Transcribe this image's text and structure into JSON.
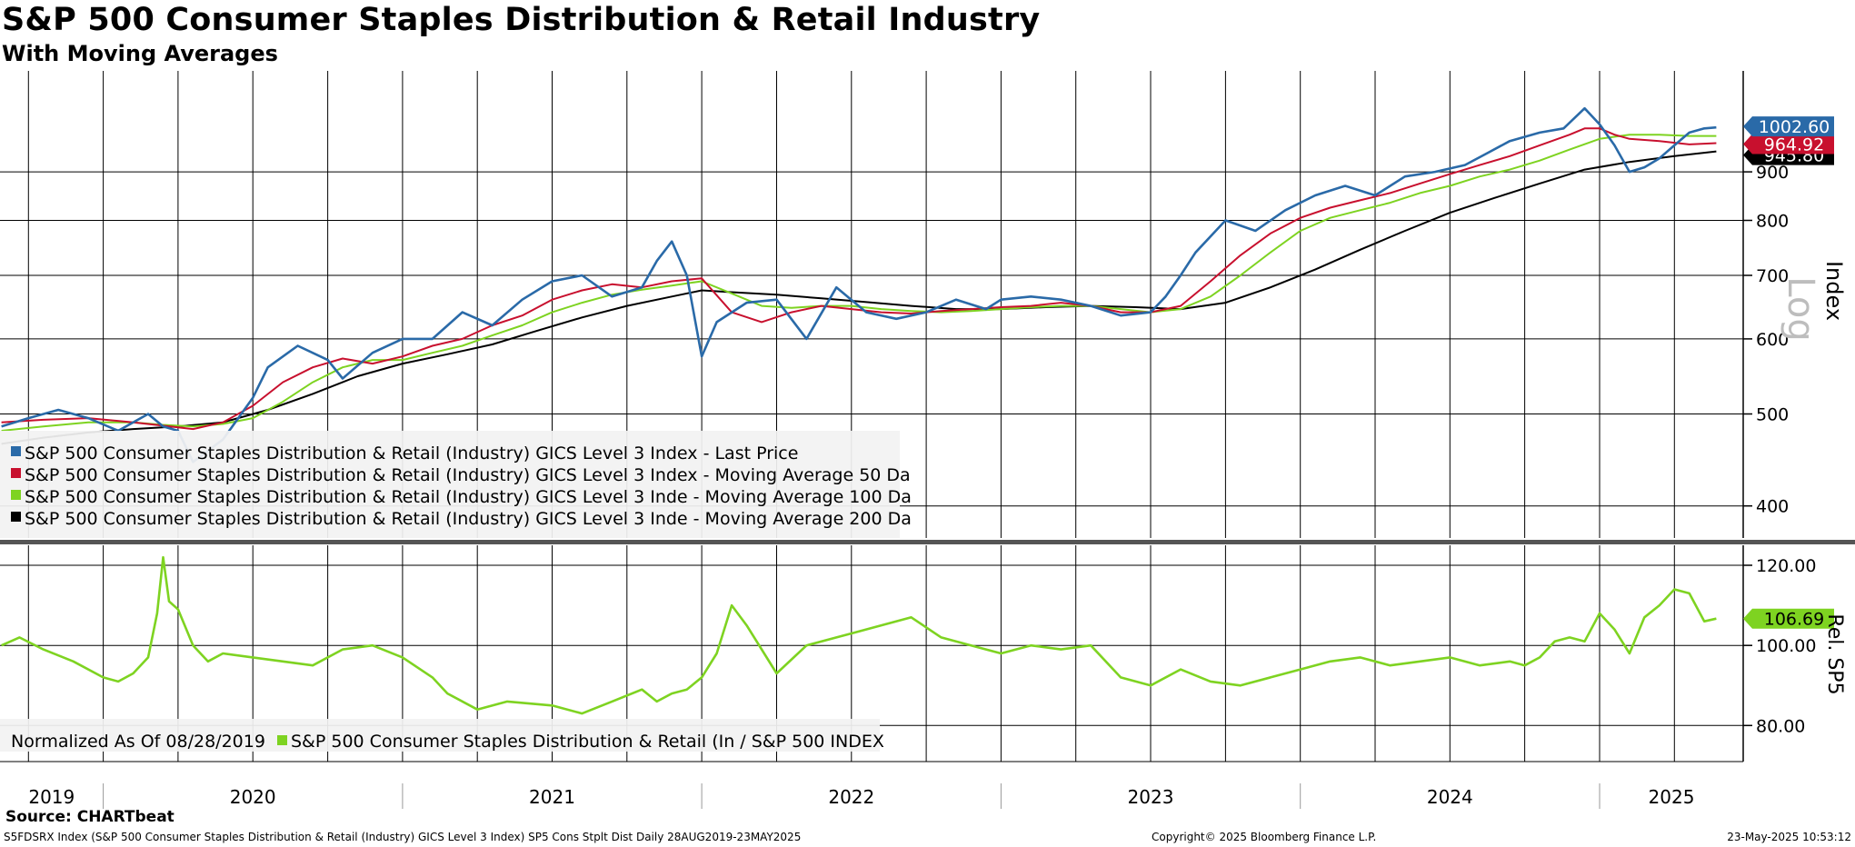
{
  "title": "S&P 500 Consumer Staples Distribution & Retail Industry",
  "subtitle": "With Moving Averages",
  "source": "Source: CHARTbeat",
  "footer": {
    "left": "S5FDSRX Index (S&P 500 Consumer Staples Distribution & Retail (Industry) GICS Level 3 Index) SP5 Cons Stplt Dist  Daily 28AUG2019-23MAY2025",
    "center": "Copyright© 2025 Bloomberg Finance L.P.",
    "right": "23-May-2025 10:53:12"
  },
  "colors": {
    "price": "#2a6aa8",
    "ma50": "#c8102e",
    "ma100": "#7ed321",
    "ma200": "#000000",
    "rel": "#7ed321"
  },
  "chart_data": [
    {
      "type": "line",
      "scale": "log",
      "ylabel": "Index",
      "scale_label": "Log",
      "ylim": [
        370,
        1150
      ],
      "yticks": [
        400,
        500,
        600,
        700,
        800,
        900
      ],
      "xlim": [
        2019.655,
        2025.48
      ],
      "years": [
        "2019",
        "2020",
        "2021",
        "2022",
        "2023",
        "2024",
        "2025"
      ],
      "last_values": {
        "price": "1002.60",
        "ma50": "964.92",
        "ma200": "945.80"
      },
      "legend": [
        "S&P 500 Consumer Staples Distribution & Retail (Industry) GICS Level 3 Index - Last Price",
        "S&P 500 Consumer Staples Distribution & Retail (Industry) GICS Level 3 Index - Moving Average 50 Da",
        "S&P 500 Consumer Staples Distribution & Retail (Industry) GICS Level 3 Inde - Moving Average 100 Da",
        "S&P 500 Consumer Staples Distribution & Retail (Industry) GICS Level 3 Inde - Moving Average 200 Da"
      ],
      "series": [
        {
          "name": "Last Price",
          "key": "price",
          "x": [
            2019.66,
            2019.75,
            2019.85,
            2019.95,
            2020.05,
            2020.15,
            2020.2,
            2020.25,
            2020.3,
            2020.4,
            2020.5,
            2020.55,
            2020.65,
            2020.75,
            2020.8,
            2020.9,
            2021.0,
            2021.1,
            2021.2,
            2021.3,
            2021.4,
            2021.5,
            2021.6,
            2021.7,
            2021.8,
            2021.85,
            2021.9,
            2021.95,
            2022.0,
            2022.05,
            2022.15,
            2022.25,
            2022.35,
            2022.45,
            2022.55,
            2022.65,
            2022.75,
            2022.85,
            2022.95,
            2023.0,
            2023.1,
            2023.2,
            2023.3,
            2023.4,
            2023.5,
            2023.55,
            2023.6,
            2023.65,
            2023.75,
            2023.85,
            2023.95,
            2024.05,
            2024.15,
            2024.25,
            2024.35,
            2024.45,
            2024.55,
            2024.62,
            2024.7,
            2024.8,
            2024.88,
            2024.95,
            2025.0,
            2025.05,
            2025.1,
            2025.15,
            2025.2,
            2025.25,
            2025.3,
            2025.35,
            2025.39
          ],
          "y": [
            485,
            495,
            505,
            495,
            480,
            500,
            485,
            480,
            445,
            470,
            520,
            560,
            590,
            570,
            545,
            580,
            600,
            600,
            640,
            620,
            660,
            690,
            700,
            665,
            680,
            725,
            760,
            700,
            575,
            625,
            655,
            660,
            600,
            680,
            640,
            630,
            640,
            660,
            645,
            660,
            665,
            660,
            650,
            635,
            640,
            665,
            700,
            740,
            800,
            780,
            820,
            850,
            870,
            850,
            890,
            900,
            915,
            940,
            970,
            990,
            1000,
            1050,
            1010,
            960,
            900,
            910,
            930,
            960,
            990,
            1000,
            1002.6
          ]
        },
        {
          "name": "Moving Average 50 Da",
          "key": "ma50",
          "x": [
            2019.66,
            2019.8,
            2019.95,
            2020.1,
            2020.2,
            2020.3,
            2020.4,
            2020.5,
            2020.6,
            2020.7,
            2020.8,
            2020.9,
            2021.0,
            2021.1,
            2021.2,
            2021.3,
            2021.4,
            2021.5,
            2021.6,
            2021.7,
            2021.8,
            2021.9,
            2022.0,
            2022.1,
            2022.2,
            2022.3,
            2022.4,
            2022.5,
            2022.6,
            2022.7,
            2022.8,
            2022.9,
            2023.0,
            2023.1,
            2023.2,
            2023.3,
            2023.4,
            2023.5,
            2023.6,
            2023.7,
            2023.8,
            2023.9,
            2024.0,
            2024.1,
            2024.2,
            2024.3,
            2024.4,
            2024.5,
            2024.6,
            2024.7,
            2024.8,
            2024.9,
            2024.95,
            2025.0,
            2025.05,
            2025.1,
            2025.2,
            2025.3,
            2025.39
          ],
          "y": [
            490,
            493,
            495,
            490,
            486,
            482,
            490,
            510,
            540,
            560,
            572,
            565,
            575,
            590,
            600,
            620,
            635,
            660,
            675,
            685,
            680,
            690,
            695,
            640,
            625,
            640,
            650,
            645,
            640,
            638,
            642,
            645,
            648,
            650,
            655,
            650,
            640,
            640,
            650,
            690,
            735,
            775,
            805,
            825,
            840,
            855,
            875,
            895,
            915,
            935,
            960,
            985,
            1000,
            1000,
            985,
            975,
            970,
            962,
            964.92
          ]
        },
        {
          "name": "Moving Average 100 Da",
          "key": "ma100",
          "x": [
            2019.66,
            2019.8,
            2019.95,
            2020.1,
            2020.2,
            2020.3,
            2020.4,
            2020.5,
            2020.6,
            2020.7,
            2020.8,
            2020.9,
            2021.0,
            2021.1,
            2021.2,
            2021.3,
            2021.4,
            2021.5,
            2021.6,
            2021.7,
            2021.8,
            2021.9,
            2022.0,
            2022.1,
            2022.2,
            2022.3,
            2022.4,
            2022.5,
            2022.6,
            2022.7,
            2022.8,
            2022.9,
            2023.0,
            2023.1,
            2023.2,
            2023.3,
            2023.4,
            2023.5,
            2023.6,
            2023.7,
            2023.8,
            2023.9,
            2024.0,
            2024.1,
            2024.2,
            2024.3,
            2024.4,
            2024.5,
            2024.6,
            2024.7,
            2024.8,
            2024.9,
            2025.0,
            2025.1,
            2025.2,
            2025.3,
            2025.39
          ],
          "y": [
            480,
            485,
            490,
            490,
            487,
            485,
            488,
            495,
            515,
            540,
            560,
            570,
            570,
            580,
            590,
            605,
            620,
            640,
            655,
            668,
            676,
            683,
            690,
            670,
            650,
            647,
            650,
            650,
            645,
            642,
            640,
            642,
            645,
            648,
            650,
            650,
            645,
            640,
            645,
            665,
            700,
            740,
            780,
            805,
            820,
            835,
            855,
            870,
            890,
            905,
            925,
            950,
            975,
            985,
            985,
            982,
            982
          ]
        },
        {
          "name": "Moving Average 200 Da",
          "key": "ma200",
          "x": [
            2019.66,
            2019.8,
            2019.95,
            2020.1,
            2020.25,
            2020.4,
            2020.55,
            2020.7,
            2020.85,
            2021.0,
            2021.15,
            2021.3,
            2021.45,
            2021.6,
            2021.75,
            2021.9,
            2022.0,
            2022.1,
            2022.25,
            2022.4,
            2022.55,
            2022.7,
            2022.85,
            2023.0,
            2023.15,
            2023.3,
            2023.45,
            2023.6,
            2023.75,
            2023.9,
            2024.05,
            2024.2,
            2024.35,
            2024.5,
            2024.65,
            2024.8,
            2024.95,
            2025.1,
            2025.25,
            2025.39
          ],
          "y": [
            465,
            472,
            478,
            482,
            485,
            490,
            505,
            525,
            548,
            565,
            578,
            592,
            612,
            632,
            650,
            665,
            675,
            672,
            668,
            662,
            656,
            650,
            645,
            645,
            648,
            650,
            648,
            645,
            655,
            680,
            710,
            745,
            780,
            815,
            845,
            875,
            905,
            922,
            935,
            945.8
          ]
        }
      ]
    },
    {
      "type": "line",
      "ylabel": "Rel. SP5",
      "ylim": [
        71,
        125
      ],
      "yticks": [
        "120.00",
        "100.00",
        "80.00"
      ],
      "yticks_values": [
        120,
        100,
        80
      ],
      "xlim": [
        2019.655,
        2025.48
      ],
      "last_value": "106.69",
      "legend_note": "Normalized As Of 08/28/2019",
      "legend": [
        "S&P 500 Consumer Staples Distribution & Retail (In / S&P 500 INDEX"
      ],
      "series": [
        {
          "name": "S&P 500 Consumer Staples Distribution & Retail (In / S&P 500 INDEX",
          "key": "rel",
          "x": [
            2019.66,
            2019.72,
            2019.8,
            2019.9,
            2020.0,
            2020.05,
            2020.1,
            2020.15,
            2020.18,
            2020.2,
            2020.22,
            2020.25,
            2020.3,
            2020.35,
            2020.4,
            2020.5,
            2020.6,
            2020.7,
            2020.8,
            2020.9,
            2021.0,
            2021.1,
            2021.15,
            2021.25,
            2021.35,
            2021.5,
            2021.6,
            2021.7,
            2021.8,
            2021.85,
            2021.9,
            2021.95,
            2022.0,
            2022.05,
            2022.1,
            2022.15,
            2022.25,
            2022.35,
            2022.45,
            2022.5,
            2022.6,
            2022.7,
            2022.8,
            2022.9,
            2023.0,
            2023.1,
            2023.2,
            2023.3,
            2023.4,
            2023.5,
            2023.6,
            2023.7,
            2023.8,
            2023.9,
            2024.0,
            2024.1,
            2024.2,
            2024.3,
            2024.4,
            2024.5,
            2024.6,
            2024.7,
            2024.75,
            2024.8,
            2024.85,
            2024.9,
            2024.95,
            2025.0,
            2025.05,
            2025.1,
            2025.15,
            2025.2,
            2025.25,
            2025.3,
            2025.35,
            2025.39
          ],
          "y": [
            100,
            102,
            99,
            96,
            92,
            91,
            93,
            97,
            108,
            122,
            111,
            109,
            100,
            96,
            98,
            97,
            96,
            95,
            99,
            100,
            97,
            92,
            88,
            84,
            86,
            85,
            83,
            86,
            89,
            86,
            88,
            89,
            92,
            98,
            110,
            105,
            93,
            100,
            102,
            103,
            105,
            107,
            102,
            100,
            98,
            100,
            99,
            100,
            92,
            90,
            94,
            91,
            90,
            92,
            94,
            96,
            97,
            95,
            96,
            97,
            95,
            96,
            95,
            97,
            101,
            102,
            101,
            108,
            104,
            98,
            107,
            110,
            114,
            113,
            106,
            106.69
          ]
        }
      ]
    }
  ]
}
